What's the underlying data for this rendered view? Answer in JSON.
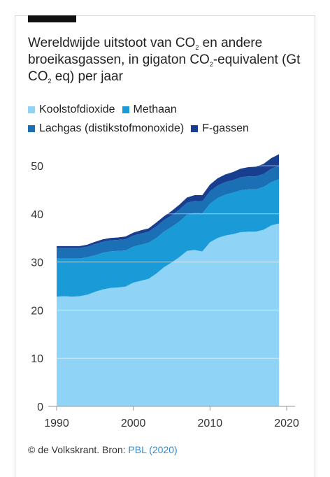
{
  "title": {
    "part1": "Wereldwijde uitstoot van CO",
    "sub1": "2",
    "part2": " en andere broeikasgassen, in gigaton CO",
    "sub2": "2",
    "part3": "-equivalent (Gt CO",
    "sub3": "2",
    "part4": " eq) per jaar"
  },
  "legend": [
    {
      "label": "Koolstofdioxide",
      "color": "#8fd3f6"
    },
    {
      "label": "Methaan",
      "color": "#1a9bd7"
    },
    {
      "label": "Lachgas (distikstofmonoxide)",
      "color": "#1a6fb5"
    },
    {
      "label": "F-gassen",
      "color": "#183f8f"
    }
  ],
  "footer": {
    "source": "© de Volkskrant. Bron: ",
    "link": "PBL (2020)"
  },
  "chart_data": {
    "type": "area",
    "stacked": true,
    "x": [
      1990,
      1991,
      1992,
      1993,
      1994,
      1995,
      1996,
      1997,
      1998,
      1999,
      2000,
      2001,
      2002,
      2003,
      2004,
      2005,
      2006,
      2007,
      2008,
      2009,
      2010,
      2011,
      2012,
      2013,
      2014,
      2015,
      2016,
      2017,
      2018,
      2019
    ],
    "series": [
      {
        "name": "Koolstofdioxide",
        "color": "#8fd3f6",
        "values": [
          22.8,
          22.9,
          22.8,
          22.9,
          23.2,
          23.8,
          24.3,
          24.6,
          24.7,
          24.9,
          25.7,
          26.1,
          26.5,
          27.6,
          28.9,
          29.9,
          31.0,
          32.3,
          32.5,
          32.2,
          34.1,
          35.0,
          35.5,
          35.8,
          36.2,
          36.3,
          36.3,
          36.7,
          37.6,
          38.0
        ]
      },
      {
        "name": "Methaan",
        "color": "#1a9bd7",
        "values": [
          7.9,
          7.8,
          7.9,
          7.8,
          7.8,
          7.6,
          7.6,
          7.6,
          7.6,
          7.5,
          7.5,
          7.5,
          7.5,
          7.4,
          7.4,
          7.4,
          7.4,
          7.5,
          7.7,
          7.9,
          8.0,
          8.3,
          8.5,
          8.6,
          8.7,
          8.8,
          8.8,
          8.9,
          9.0,
          9.2
        ]
      },
      {
        "name": "Lachgas (distikstofmonoxide)",
        "color": "#1a6fb5",
        "values": [
          2.2,
          2.2,
          2.2,
          2.2,
          2.2,
          2.3,
          2.3,
          2.3,
          2.3,
          2.3,
          2.3,
          2.3,
          2.3,
          2.4,
          2.4,
          2.4,
          2.5,
          2.5,
          2.5,
          2.5,
          2.6,
          2.6,
          2.6,
          2.6,
          2.7,
          2.7,
          2.7,
          2.7,
          2.8,
          2.8
        ]
      },
      {
        "name": "F-gassen",
        "color": "#183f8f",
        "values": [
          0.4,
          0.4,
          0.4,
          0.4,
          0.4,
          0.5,
          0.5,
          0.5,
          0.5,
          0.6,
          0.6,
          0.7,
          0.7,
          0.8,
          0.8,
          0.9,
          1.0,
          1.1,
          1.2,
          1.3,
          1.4,
          1.5,
          1.6,
          1.7,
          1.8,
          1.9,
          2.0,
          2.1,
          2.2,
          2.4
        ]
      }
    ],
    "ylim": [
      0,
      55
    ],
    "yticks": [
      0,
      10,
      20,
      30,
      40,
      50
    ],
    "xticks": [
      1990,
      2000,
      2010,
      2020
    ],
    "xlim": [
      1990,
      2020
    ],
    "grid": true,
    "legend_position": "top-left"
  }
}
